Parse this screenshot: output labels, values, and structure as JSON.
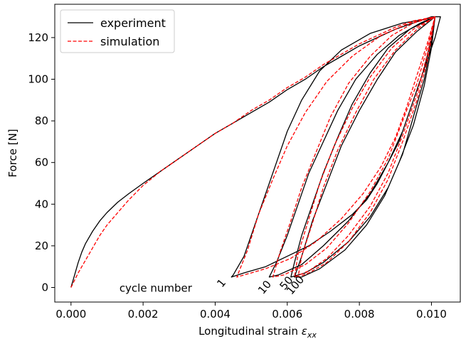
{
  "chart_data": {
    "type": "line",
    "title": "",
    "xlabel": "Longitudinal strain ",
    "xlabel_symbol": "ε",
    "xlabel_subscript": "xx",
    "ylabel": "Force [N]",
    "xlim": [
      -0.00045,
      0.0108
    ],
    "ylim": [
      -7,
      136
    ],
    "x_ticks": [
      0.0,
      0.002,
      0.004,
      0.006,
      0.008,
      0.01
    ],
    "x_tick_labels": [
      "0.000",
      "0.002",
      "0.004",
      "0.006",
      "0.008",
      "0.010"
    ],
    "y_ticks": [
      0,
      20,
      40,
      60,
      80,
      100,
      120
    ],
    "y_tick_labels": [
      "0",
      "20",
      "40",
      "60",
      "80",
      "100",
      "120"
    ],
    "grid": false,
    "legend_position": "top-left",
    "colors": {
      "experiment": "#000000",
      "simulation": "#ff0000"
    },
    "series": [
      {
        "name": "experiment",
        "style": "solid",
        "points": [
          [
            0.0,
            0
          ],
          [
            5e-05,
            3
          ],
          [
            0.0001,
            6
          ],
          [
            0.0002,
            12
          ],
          [
            0.0003,
            17
          ],
          [
            0.0004,
            21
          ],
          [
            0.0006,
            27
          ],
          [
            0.0008,
            32
          ],
          [
            0.001,
            36
          ],
          [
            0.0013,
            41
          ],
          [
            0.0016,
            45
          ],
          [
            0.002,
            50
          ],
          [
            0.0025,
            56
          ],
          [
            0.003,
            62
          ],
          [
            0.0035,
            68
          ],
          [
            0.004,
            74
          ],
          [
            0.0045,
            79
          ],
          [
            0.005,
            84
          ],
          [
            0.0055,
            89
          ],
          [
            0.006,
            95
          ],
          [
            0.0065,
            100
          ],
          [
            0.007,
            106
          ],
          [
            0.0075,
            111
          ],
          [
            0.008,
            116
          ],
          [
            0.0085,
            120
          ],
          [
            0.009,
            124
          ],
          [
            0.0095,
            127
          ],
          [
            0.01,
            130
          ],
          [
            0.01025,
            130
          ],
          [
            0.0101,
            120
          ],
          [
            0.0099,
            110
          ],
          [
            0.0097,
            100
          ],
          [
            0.0095,
            90
          ],
          [
            0.0093,
            80
          ],
          [
            0.0091,
            70
          ],
          [
            0.0088,
            60
          ],
          [
            0.0085,
            50
          ],
          [
            0.0082,
            42
          ],
          [
            0.0078,
            35
          ],
          [
            0.0072,
            27
          ],
          [
            0.0066,
            20
          ],
          [
            0.006,
            15
          ],
          [
            0.0054,
            10
          ],
          [
            0.0048,
            7
          ],
          [
            0.00445,
            5
          ],
          [
            0.0045,
            6
          ],
          [
            0.0048,
            15
          ],
          [
            0.0051,
            30
          ],
          [
            0.0054,
            45
          ],
          [
            0.0057,
            60
          ],
          [
            0.006,
            75
          ],
          [
            0.0064,
            90
          ],
          [
            0.0069,
            104
          ],
          [
            0.0075,
            114
          ],
          [
            0.0083,
            122
          ],
          [
            0.0092,
            127
          ],
          [
            0.0099,
            129
          ],
          [
            0.0101,
            130
          ],
          [
            0.01,
            120
          ],
          [
            0.0098,
            105
          ],
          [
            0.0095,
            90
          ],
          [
            0.0092,
            75
          ],
          [
            0.0088,
            60
          ],
          [
            0.0083,
            45
          ],
          [
            0.0077,
            32
          ],
          [
            0.007,
            20
          ],
          [
            0.0064,
            11
          ],
          [
            0.00575,
            6
          ],
          [
            0.0055,
            5
          ],
          [
            0.0057,
            12
          ],
          [
            0.006,
            25
          ],
          [
            0.0063,
            40
          ],
          [
            0.0066,
            55
          ],
          [
            0.007,
            70
          ],
          [
            0.0074,
            85
          ],
          [
            0.0079,
            100
          ],
          [
            0.0085,
            112
          ],
          [
            0.0091,
            121
          ],
          [
            0.0097,
            127
          ],
          [
            0.0101,
            130
          ],
          [
            0.01,
            118
          ],
          [
            0.0098,
            100
          ],
          [
            0.0095,
            82
          ],
          [
            0.0092,
            64
          ],
          [
            0.0088,
            48
          ],
          [
            0.0083,
            34
          ],
          [
            0.0077,
            22
          ],
          [
            0.007,
            12
          ],
          [
            0.0065,
            7
          ],
          [
            0.0061,
            5
          ],
          [
            0.0062,
            12
          ],
          [
            0.0064,
            25
          ],
          [
            0.0067,
            40
          ],
          [
            0.007,
            55
          ],
          [
            0.0074,
            72
          ],
          [
            0.0078,
            88
          ],
          [
            0.0083,
            103
          ],
          [
            0.0088,
            115
          ],
          [
            0.0094,
            124
          ],
          [
            0.0101,
            130
          ],
          [
            0.01,
            115
          ],
          [
            0.0098,
            97
          ],
          [
            0.0095,
            78
          ],
          [
            0.0091,
            60
          ],
          [
            0.0087,
            44
          ],
          [
            0.0082,
            30
          ],
          [
            0.0076,
            18
          ],
          [
            0.0069,
            9
          ],
          [
            0.0064,
            5
          ],
          [
            0.0062,
            5
          ],
          [
            0.0064,
            15
          ],
          [
            0.0067,
            32
          ],
          [
            0.0071,
            50
          ],
          [
            0.0075,
            68
          ],
          [
            0.008,
            85
          ],
          [
            0.0085,
            100
          ],
          [
            0.009,
            113
          ],
          [
            0.0096,
            123
          ],
          [
            0.0101,
            130
          ]
        ]
      },
      {
        "name": "simulation",
        "style": "dashed",
        "points": [
          [
            0.0,
            0
          ],
          [
            0.0002,
            7
          ],
          [
            0.0004,
            13
          ],
          [
            0.0006,
            19
          ],
          [
            0.0008,
            25
          ],
          [
            0.001,
            30
          ],
          [
            0.0013,
            36
          ],
          [
            0.0016,
            42
          ],
          [
            0.002,
            49
          ],
          [
            0.0025,
            56
          ],
          [
            0.003,
            62
          ],
          [
            0.0035,
            68
          ],
          [
            0.004,
            74
          ],
          [
            0.0045,
            79
          ],
          [
            0.005,
            85
          ],
          [
            0.0055,
            90
          ],
          [
            0.006,
            96
          ],
          [
            0.0065,
            101
          ],
          [
            0.007,
            107
          ],
          [
            0.0075,
            112
          ],
          [
            0.008,
            117
          ],
          [
            0.0085,
            121
          ],
          [
            0.009,
            125
          ],
          [
            0.0095,
            128
          ],
          [
            0.0101,
            130
          ],
          [
            0.0099,
            118
          ],
          [
            0.0096,
            102
          ],
          [
            0.0093,
            86
          ],
          [
            0.009,
            72
          ],
          [
            0.0086,
            58
          ],
          [
            0.0081,
            45
          ],
          [
            0.0075,
            33
          ],
          [
            0.0068,
            22
          ],
          [
            0.0061,
            14
          ],
          [
            0.0054,
            9
          ],
          [
            0.0048,
            6
          ],
          [
            0.0046,
            5
          ],
          [
            0.0049,
            18
          ],
          [
            0.0052,
            35
          ],
          [
            0.0056,
            52
          ],
          [
            0.006,
            68
          ],
          [
            0.0065,
            84
          ],
          [
            0.0071,
            99
          ],
          [
            0.0078,
            111
          ],
          [
            0.0086,
            121
          ],
          [
            0.0094,
            127
          ],
          [
            0.0101,
            130
          ],
          [
            0.0099,
            116
          ],
          [
            0.0096,
            98
          ],
          [
            0.0092,
            80
          ],
          [
            0.0088,
            62
          ],
          [
            0.0083,
            46
          ],
          [
            0.0077,
            31
          ],
          [
            0.0071,
            19
          ],
          [
            0.0065,
            11
          ],
          [
            0.0059,
            6
          ],
          [
            0.0056,
            5
          ],
          [
            0.0058,
            17
          ],
          [
            0.0061,
            32
          ],
          [
            0.0064,
            48
          ],
          [
            0.0068,
            65
          ],
          [
            0.0072,
            82
          ],
          [
            0.0077,
            98
          ],
          [
            0.0083,
            111
          ],
          [
            0.0089,
            121
          ],
          [
            0.0095,
            127
          ],
          [
            0.0101,
            130
          ],
          [
            0.0099,
            113
          ],
          [
            0.0096,
            93
          ],
          [
            0.0092,
            73
          ],
          [
            0.0088,
            55
          ],
          [
            0.0083,
            39
          ],
          [
            0.0077,
            25
          ],
          [
            0.0071,
            14
          ],
          [
            0.0066,
            8
          ],
          [
            0.0062,
            5
          ],
          [
            0.0063,
            16
          ],
          [
            0.0066,
            33
          ],
          [
            0.0069,
            50
          ],
          [
            0.0073,
            68
          ],
          [
            0.0078,
            86
          ],
          [
            0.0083,
            101
          ],
          [
            0.0089,
            115
          ],
          [
            0.0095,
            124
          ],
          [
            0.0101,
            130
          ],
          [
            0.0099,
            110
          ],
          [
            0.0096,
            90
          ],
          [
            0.0092,
            70
          ],
          [
            0.0088,
            52
          ],
          [
            0.0083,
            36
          ],
          [
            0.0077,
            22
          ],
          [
            0.0071,
            12
          ],
          [
            0.0066,
            7
          ],
          [
            0.0063,
            5
          ],
          [
            0.0064,
            15
          ],
          [
            0.0067,
            31
          ],
          [
            0.007,
            48
          ],
          [
            0.0074,
            66
          ],
          [
            0.0079,
            84
          ],
          [
            0.0084,
            100
          ],
          [
            0.009,
            114
          ],
          [
            0.0096,
            124
          ],
          [
            0.0101,
            130
          ]
        ]
      }
    ],
    "annotations": [
      {
        "text": "cycle number",
        "x": 0.00235,
        "y": -2,
        "rotation": 0
      },
      {
        "text": "1",
        "x": 0.00425,
        "y": 1,
        "rotation": -50
      },
      {
        "text": "10",
        "x": 0.00545,
        "y": -1,
        "rotation": -50
      },
      {
        "text": "50",
        "x": 0.00605,
        "y": 1,
        "rotation": -50
      },
      {
        "text": "100",
        "x": 0.0063,
        "y": 0,
        "rotation": -50
      }
    ]
  }
}
